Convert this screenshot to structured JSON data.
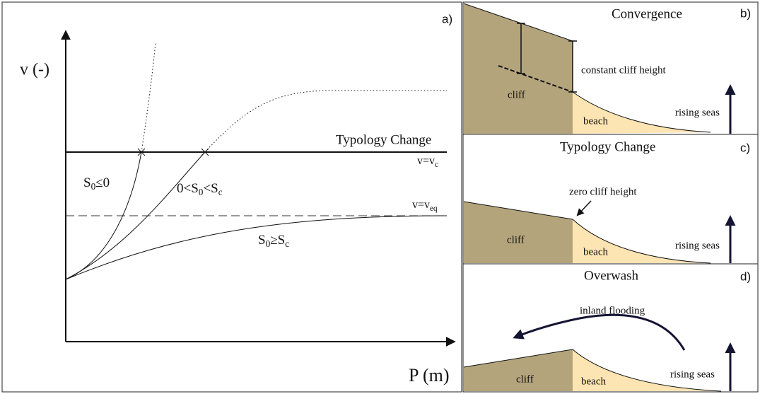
{
  "panel_a": {
    "letter": "a)",
    "y_axis_label": "v (-)",
    "x_axis_label": "P (m)",
    "threshold_label": "Typology Change",
    "vc_label": [
      {
        "text": "v=v"
      },
      {
        "sub": "c"
      }
    ],
    "veq_label": [
      {
        "text": "v=v"
      },
      {
        "sub": "eq"
      }
    ],
    "curve_labels": [
      [
        {
          "text": "S"
        },
        {
          "sub": "0"
        },
        {
          "text": "≤0"
        }
      ],
      [
        {
          "text": "0<S"
        },
        {
          "sub": "0"
        },
        {
          "text": "<S"
        },
        {
          "sub": "c"
        }
      ],
      [
        {
          "text": "S"
        },
        {
          "sub": "0"
        },
        {
          "text": "≥S"
        },
        {
          "sub": "c"
        }
      ]
    ]
  },
  "panel_b": {
    "title": "Convergence",
    "letter": "b)",
    "annotation": "constant cliff height",
    "cliff": "cliff",
    "beach": "beach",
    "seas": "rising seas"
  },
  "panel_c": {
    "title": "Typology Change",
    "letter": "c)",
    "annotation": "zero cliff height",
    "cliff": "cliff",
    "beach": "beach",
    "seas": "rising seas"
  },
  "panel_d": {
    "title": "Overwash",
    "letter": "d)",
    "annotation": "inland flooding",
    "cliff": "cliff",
    "beach": "beach",
    "seas": "rising seas"
  }
}
